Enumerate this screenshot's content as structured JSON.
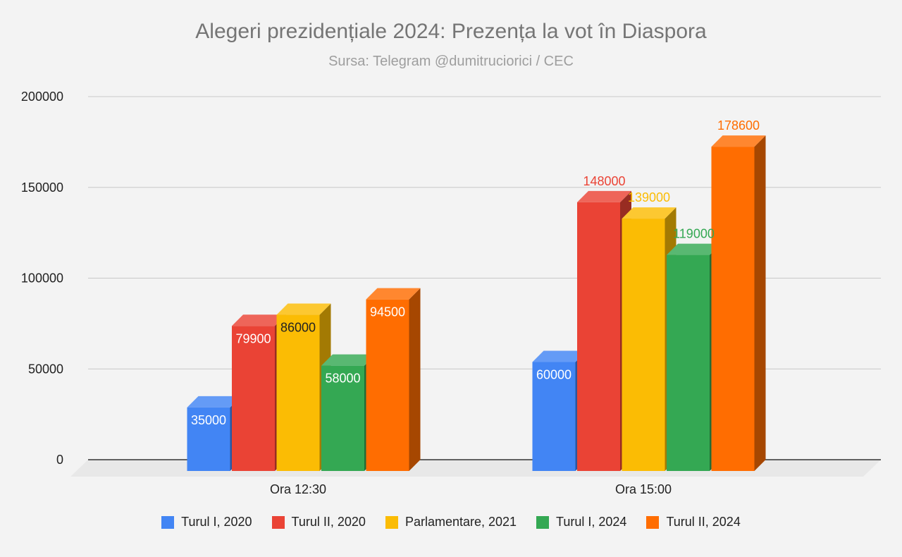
{
  "chart_data": {
    "type": "bar",
    "title": "Alegeri prezidențiale 2024: Prezența la vot în Diaspora",
    "subtitle": "Sursa: Telegram @dumitruciorici / CEC",
    "xlabel": "",
    "ylabel": "",
    "categories": [
      "Ora 12:30",
      "Ora 15:00"
    ],
    "series": [
      {
        "name": "Turul I, 2020",
        "color": "#4285f4",
        "values": [
          35000,
          60000
        ],
        "labels": [
          "35000",
          "60000"
        ]
      },
      {
        "name": "Turul II, 2020",
        "color": "#ea4335",
        "values": [
          79900,
          148000
        ],
        "labels": [
          "79900",
          "148000"
        ]
      },
      {
        "name": "Parlamentare, 2021",
        "color": "#fbbc04",
        "values": [
          86000,
          139000
        ],
        "labels": [
          "86000",
          "139000"
        ]
      },
      {
        "name": "Turul I, 2024",
        "color": "#34a853",
        "values": [
          58000,
          119000
        ],
        "labels": [
          "58000",
          "119000"
        ]
      },
      {
        "name": "Turul II, 2024",
        "color": "#ff6d01",
        "values": [
          94500,
          178600
        ],
        "labels": [
          "94500",
          "178600"
        ]
      }
    ],
    "ylim": [
      0,
      200000
    ],
    "yticks": [
      "0",
      "50000",
      "100000",
      "150000",
      "200000"
    ],
    "grid": true,
    "legend_position": "bottom",
    "three_d": true
  }
}
